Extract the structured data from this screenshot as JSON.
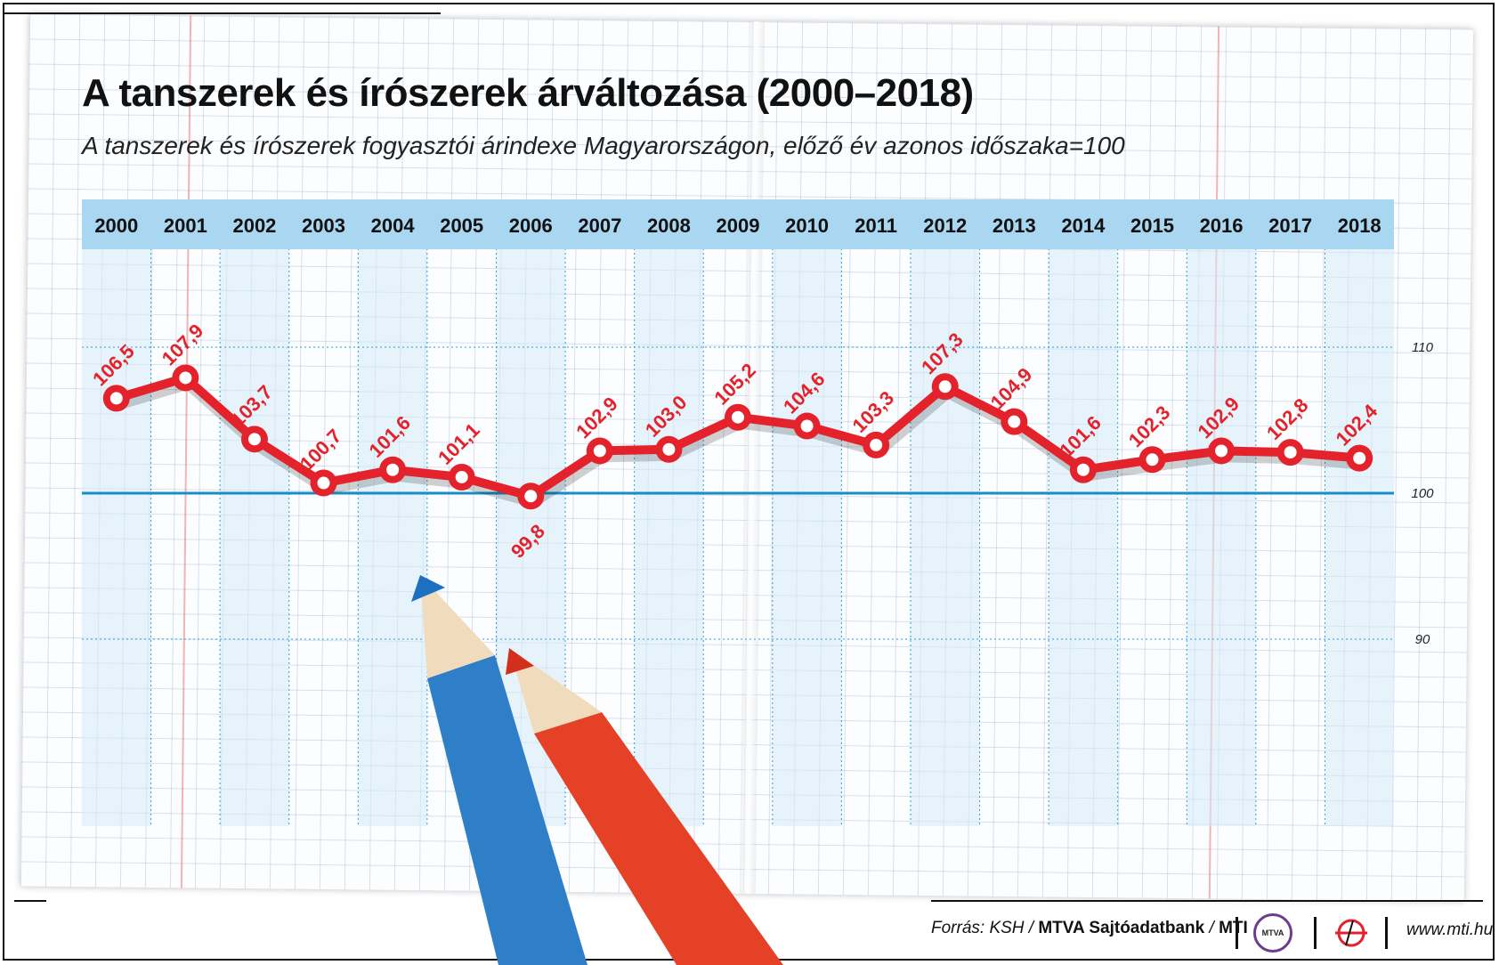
{
  "title": "A tanszerek és írószerek árváltozása (2000–2018)",
  "subtitle": "A tanszerek és írószerek fogyasztói árindexe Magyarországon, előző év azonos időszaka=100",
  "colors": {
    "line": "#e3222b",
    "header_band": "#a9d6f0",
    "baseline": "#1a8ec4",
    "column_stripe": "#d6ebf8",
    "grid_dotted": "#2a9fd6"
  },
  "chart_data": {
    "type": "line",
    "title": "A tanszerek és írószerek árváltozása (2000–2018)",
    "subtitle": "A tanszerek és írószerek fogyasztói árindexe Magyarországon, előző év azonos időszaka=100",
    "categories": [
      "2000",
      "2001",
      "2002",
      "2003",
      "2004",
      "2005",
      "2006",
      "2007",
      "2008",
      "2009",
      "2010",
      "2011",
      "2012",
      "2013",
      "2014",
      "2015",
      "2016",
      "2017",
      "2018"
    ],
    "values": [
      106.5,
      107.9,
      103.7,
      100.7,
      101.6,
      101.1,
      99.8,
      102.9,
      103.0,
      105.2,
      104.6,
      103.3,
      107.3,
      104.9,
      101.6,
      102.3,
      102.9,
      102.8,
      102.4
    ],
    "value_labels": [
      "106,5",
      "107,9",
      "103,7",
      "100,7",
      "101,6",
      "101,1",
      "99,8",
      "102,9",
      "103,0",
      "105,2",
      "104,6",
      "103,3",
      "107,3",
      "104,9",
      "101,6",
      "102,3",
      "102,9",
      "102,8",
      "102,4"
    ],
    "y_ticks": [
      110,
      100,
      90
    ],
    "y_tick_labels": [
      "110",
      "100",
      "90"
    ],
    "ylim": [
      80,
      114
    ],
    "reference_value": 100,
    "grid": true,
    "legend": "none"
  },
  "footer": {
    "source_prefix": "Forrás: KSH / ",
    "source_bold1": "MTVA Sajtóadatbank",
    "source_mid": " / ",
    "source_bold2": "MTI",
    "logo1_text": "MTVA",
    "url": "www.mti.hu"
  }
}
